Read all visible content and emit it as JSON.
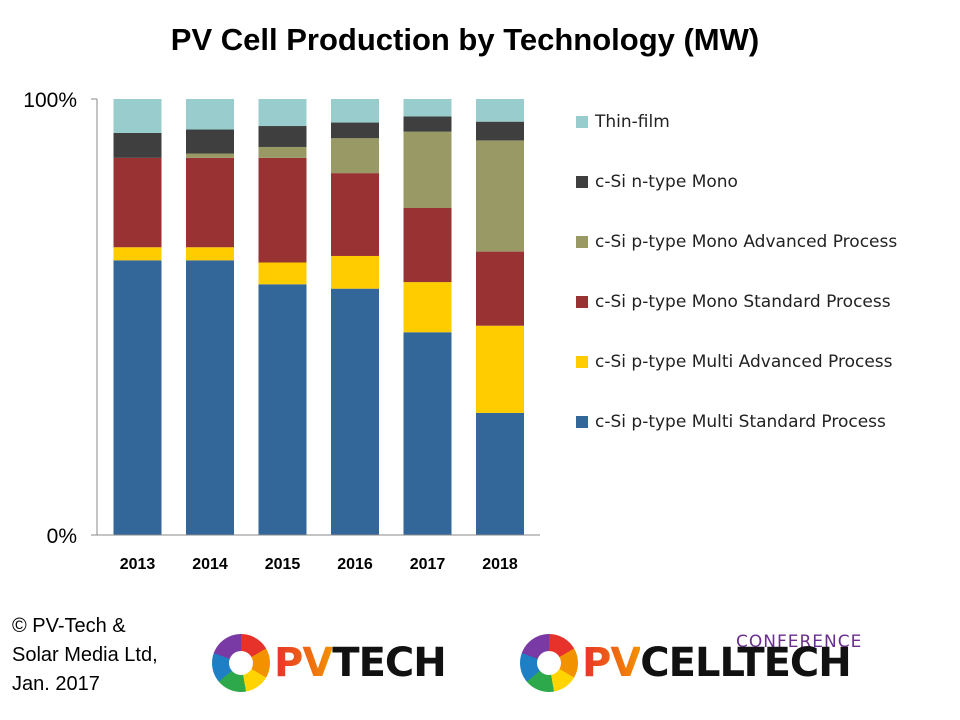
{
  "chart_data": {
    "type": "bar",
    "stacked": true,
    "title": "PV Cell Production by Technology (MW)",
    "categories": [
      "2013",
      "2014",
      "2015",
      "2016",
      "2017",
      "2018"
    ],
    "y_ticks": [
      "0%",
      "100%"
    ],
    "ylim": [
      0,
      100
    ],
    "legend_position": "right",
    "series": [
      {
        "name": "c-Si p-type Multi Standard Process",
        "color": "#336699",
        "values": [
          63,
          63,
          57.5,
          56.5,
          46.5,
          28
        ]
      },
      {
        "name": "c-Si p-type Multi Advanced Process",
        "color": "#FFCC00",
        "values": [
          3,
          3,
          5,
          7.5,
          11.5,
          20
        ]
      },
      {
        "name": "c-Si p-type Mono Standard Process",
        "color": "#993333",
        "values": [
          20.5,
          20.5,
          24,
          19,
          17,
          17
        ]
      },
      {
        "name": "c-Si p-type Mono Advanced Process",
        "color": "#999966",
        "values": [
          0,
          1,
          2.5,
          8,
          17.5,
          25.5
        ]
      },
      {
        "name": "c-Si n-type Mono",
        "color": "#3f3f3f",
        "values": [
          5.7,
          5.5,
          4.8,
          3.6,
          3.5,
          4.3
        ]
      },
      {
        "name": "Thin-film",
        "color": "#99CCCC",
        "values": [
          7.8,
          7,
          6.2,
          5.4,
          4,
          5.2
        ]
      }
    ]
  },
  "copyright": "© PV-Tech &\nSolar Media Ltd,\nJan. 2017",
  "logos": {
    "pvtech": {
      "prefix": "PV",
      "rest": "TECH"
    },
    "pvcelltech": {
      "top": "CONFERENCE",
      "prefix": "PV",
      "rest": "CELLTECH"
    }
  }
}
